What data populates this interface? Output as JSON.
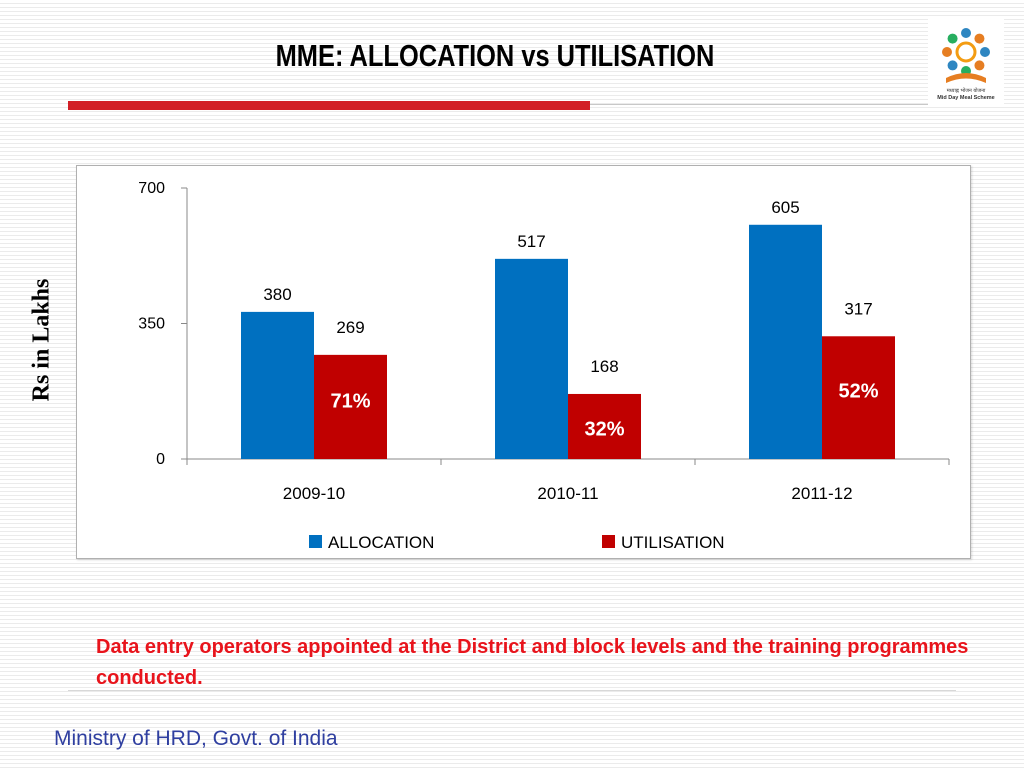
{
  "slide": {
    "title": "MME: ALLOCATION vs UTILISATION",
    "note": "Data entry operators appointed at the District and block levels and the training programmes conducted.",
    "footer": "Ministry of HRD, Govt. of India"
  },
  "logo": {
    "icon": "mid-day-meal-scheme-logo",
    "text_hindi": "मध्याह्न भोजन योजना",
    "text_english": "Mid Day Meal Scheme"
  },
  "colors": {
    "allocation": "#0070c0",
    "utilisation": "#c00000",
    "title_rule": "#d21f26",
    "note_text": "#e8141c",
    "footer_text": "#2f3fa0"
  },
  "chart_data": {
    "type": "bar",
    "categories": [
      "2009-10",
      "2010-11",
      "2011-12"
    ],
    "series": [
      {
        "name": "ALLOCATION",
        "values": [
          380,
          517,
          605
        ],
        "labels": [
          "380",
          "517",
          "605"
        ]
      },
      {
        "name": "UTILISATION",
        "values": [
          269,
          168,
          317
        ],
        "labels": [
          "269",
          "168",
          "317"
        ]
      }
    ],
    "utilisation_percent_labels": [
      "71%",
      "32%",
      "52%"
    ],
    "ylabel": "Rs in Lakhs",
    "xlabel": "",
    "ylim": [
      0,
      700
    ],
    "yticks": [
      "0",
      "350",
      "700"
    ],
    "grid": false,
    "legend_position": "bottom"
  }
}
